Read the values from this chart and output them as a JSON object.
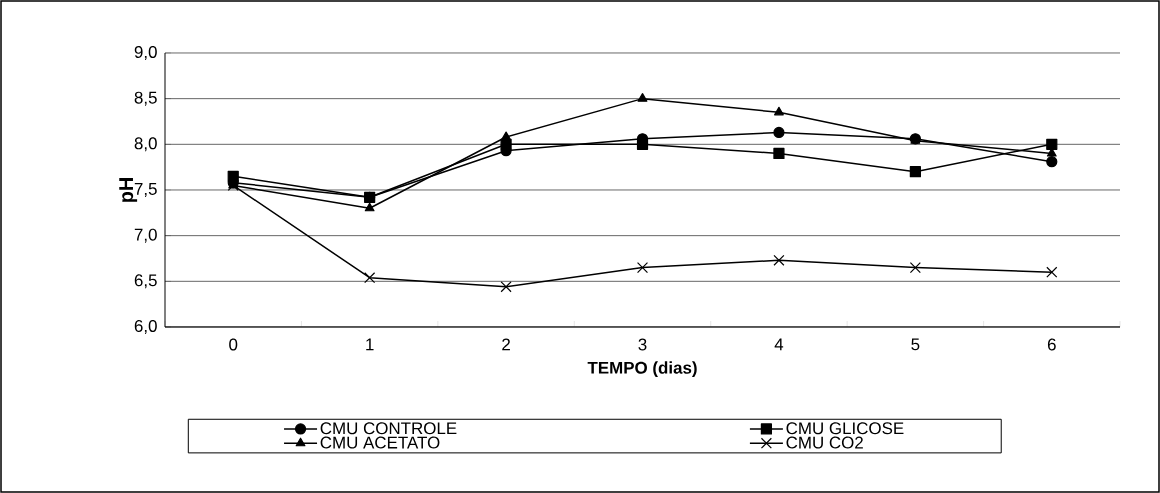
{
  "chart_data": {
    "type": "line",
    "xlabel": "TEMPO (dias)",
    "ylabel": "pH",
    "categories": [
      "0",
      "1",
      "2",
      "3",
      "4",
      "5",
      "6"
    ],
    "series": [
      {
        "name": "CMU CONTROLE",
        "color": "#000000",
        "marker": "circle",
        "values": [
          7.58,
          7.42,
          7.93,
          8.06,
          8.13,
          8.06,
          7.81
        ]
      },
      {
        "name": "CMU GLICOSE",
        "color": "#000000",
        "marker": "square",
        "values": [
          7.65,
          7.42,
          8.0,
          8.0,
          7.9,
          7.7,
          8.0
        ]
      },
      {
        "name": "CMU ACETATO",
        "color": "#000000",
        "marker": "triangle",
        "values": [
          7.55,
          7.3,
          8.08,
          8.5,
          8.35,
          8.04,
          7.9
        ]
      },
      {
        "name": "CMU CO2",
        "color": "#000000",
        "marker": "cross",
        "values": [
          7.55,
          6.54,
          6.44,
          6.65,
          6.73,
          6.65,
          6.6
        ]
      }
    ],
    "ylim": [
      6.0,
      9.0
    ],
    "yticks": [
      {
        "value": 6.0,
        "label": "6,0"
      },
      {
        "value": 6.5,
        "label": "6,5"
      },
      {
        "value": 7.0,
        "label": "7,0"
      },
      {
        "value": 7.5,
        "label": "7,5"
      },
      {
        "value": 8.0,
        "label": "8,0"
      },
      {
        "value": 8.5,
        "label": "8,5"
      },
      {
        "value": 9.0,
        "label": "9,0"
      }
    ],
    "grid": "y",
    "legend": "bottom",
    "line_style": "solid"
  }
}
